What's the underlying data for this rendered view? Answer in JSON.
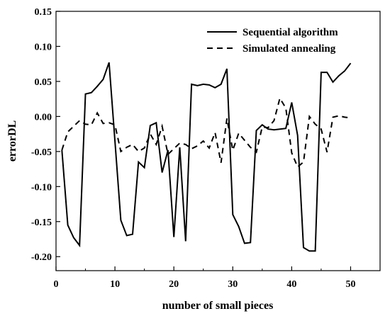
{
  "chart_data": {
    "type": "line",
    "xlabel": "number of small pieces",
    "ylabel": "errorDL",
    "xlim": [
      0,
      55
    ],
    "ylim": [
      -0.22,
      0.15
    ],
    "xticks": [
      0,
      10,
      20,
      30,
      40,
      50
    ],
    "xtick_labels": [
      "0",
      "10",
      "20",
      "30",
      "40",
      "50"
    ],
    "yticks": [
      -0.2,
      -0.15,
      -0.1,
      -0.05,
      0.0,
      0.05,
      0.1,
      0.15
    ],
    "ytick_labels": [
      "-0.20",
      "-0.15",
      "-0.10",
      "-0.05",
      "0.00",
      "0.05",
      "0.10",
      "0.15"
    ],
    "grid": false,
    "legend_position": "top-right",
    "x": [
      1,
      2,
      3,
      4,
      5,
      6,
      7,
      8,
      9,
      10,
      11,
      12,
      13,
      14,
      15,
      16,
      17,
      18,
      19,
      20,
      21,
      22,
      23,
      24,
      25,
      26,
      27,
      28,
      29,
      30,
      31,
      32,
      33,
      34,
      35,
      36,
      37,
      38,
      39,
      40,
      41,
      42,
      43,
      44,
      45,
      46,
      47,
      48,
      49,
      50
    ],
    "series": [
      {
        "name": "Sequential algorithm",
        "style": "solid",
        "color": "#000000",
        "values": [
          -0.048,
          -0.155,
          -0.173,
          -0.184,
          0.032,
          0.034,
          0.043,
          0.053,
          0.077,
          -0.035,
          -0.148,
          -0.17,
          -0.168,
          -0.065,
          -0.073,
          -0.013,
          -0.009,
          -0.08,
          -0.048,
          -0.172,
          -0.044,
          -0.178,
          0.046,
          0.044,
          0.046,
          0.045,
          0.041,
          0.046,
          0.068,
          -0.14,
          -0.157,
          -0.181,
          -0.18,
          -0.02,
          -0.012,
          -0.018,
          -0.019,
          -0.018,
          -0.017,
          0.02,
          -0.027,
          -0.187,
          -0.192,
          -0.192,
          0.063,
          0.063,
          0.049,
          0.058,
          0.065,
          0.076
        ]
      },
      {
        "name": "Simulated annealing",
        "style": "dashed",
        "color": "#000000",
        "values": [
          -0.048,
          -0.022,
          -0.014,
          -0.006,
          -0.011,
          -0.012,
          0.005,
          -0.01,
          -0.009,
          -0.012,
          -0.05,
          -0.044,
          -0.04,
          -0.05,
          -0.045,
          -0.025,
          -0.04,
          -0.014,
          -0.054,
          -0.046,
          -0.038,
          -0.04,
          -0.046,
          -0.042,
          -0.035,
          -0.045,
          -0.023,
          -0.066,
          -0.003,
          -0.048,
          -0.024,
          -0.034,
          -0.044,
          -0.051,
          -0.015,
          -0.016,
          -0.006,
          0.026,
          0.012,
          -0.052,
          -0.072,
          -0.065,
          0.0,
          -0.011,
          -0.018,
          -0.051,
          -0.001,
          0.001,
          -0.001,
          -0.002
        ]
      }
    ]
  }
}
